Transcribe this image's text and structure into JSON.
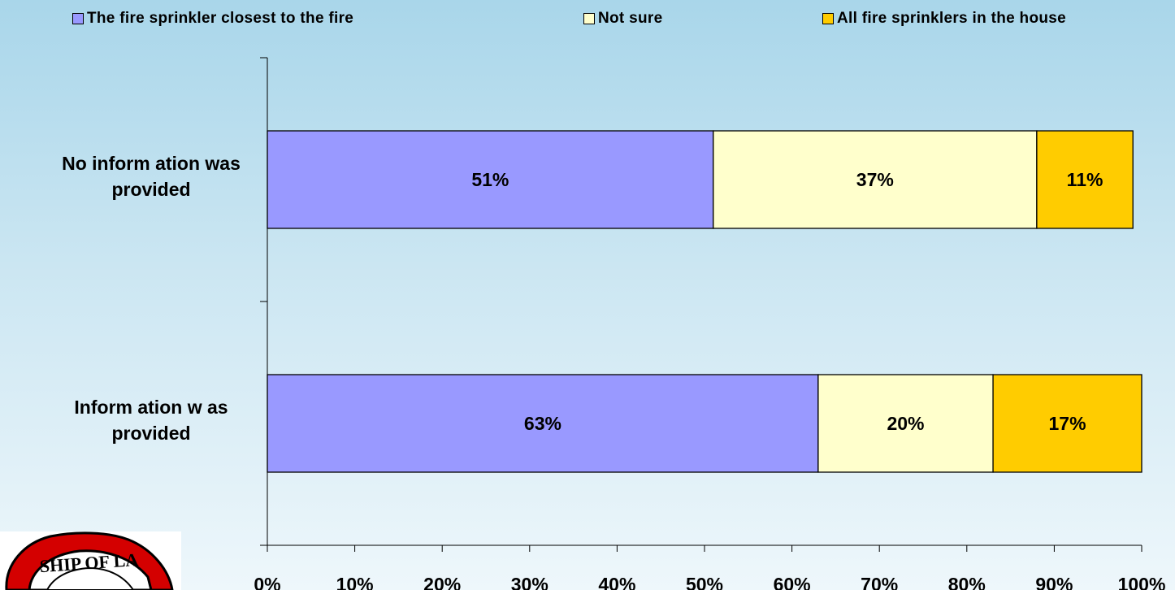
{
  "chart_data": {
    "type": "bar",
    "orientation": "horizontal",
    "stacked": "percent",
    "categories": [
      "No information was provided",
      "Information was provided"
    ],
    "category_lines": [
      [
        "No inform ation was",
        "provided"
      ],
      [
        "Inform ation w as",
        "provided"
      ]
    ],
    "series": [
      {
        "name": "The fire sprinkler closest to the fire",
        "values": [
          51,
          63
        ],
        "labels": [
          "51%",
          "63%"
        ],
        "color": "#9999ff"
      },
      {
        "name": "Not sure",
        "values": [
          37,
          20
        ],
        "labels": [
          "37%",
          "20%"
        ],
        "color": "#ffffcc"
      },
      {
        "name": "All fire sprinklers in the house",
        "values": [
          11,
          17
        ],
        "labels": [
          "11%",
          "17%"
        ],
        "color": "#ffcc00"
      }
    ],
    "xlim": [
      0,
      100
    ],
    "x_ticks": [
      0,
      10,
      20,
      30,
      40,
      50,
      60,
      70,
      80,
      90,
      100
    ],
    "x_tick_labels": [
      "0%",
      "10%",
      "20%",
      "30%",
      "40%",
      "50%",
      "60%",
      "70%",
      "80%",
      "90%",
      "100%"
    ],
    "grid": false,
    "legend_position": "top"
  },
  "logo": {
    "text": "SHIP OF LA"
  }
}
